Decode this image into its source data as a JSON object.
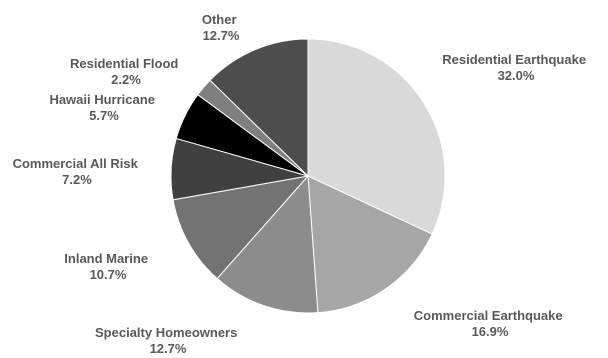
{
  "chart_data": {
    "type": "pie",
    "title": "",
    "start_angle_deg": 0,
    "direction": "clockwise",
    "slices": [
      {
        "label": "Residential Earthquake",
        "value": 32.0,
        "value_label": "32.0%",
        "color": "#d9d9d9"
      },
      {
        "label": "Commercial Earthquake",
        "value": 16.9,
        "value_label": "16.9%",
        "color": "#a6a6a6"
      },
      {
        "label": "Specialty Homeowners",
        "value": 12.7,
        "value_label": "12.7%",
        "color": "#8c8c8c"
      },
      {
        "label": "Inland Marine",
        "value": 10.7,
        "value_label": "10.7%",
        "color": "#737373"
      },
      {
        "label": "Commercial All Risk",
        "value": 7.2,
        "value_label": "7.2%",
        "color": "#404040"
      },
      {
        "label": "Hawaii Hurricane",
        "value": 5.7,
        "value_label": "5.7%",
        "color": "#000000"
      },
      {
        "label": "Residential Flood",
        "value": 2.2,
        "value_label": "2.2%",
        "color": "#7f7f7f"
      },
      {
        "label": "Other",
        "value": 12.7,
        "value_label": "12.7%",
        "color": "#4d4d4d"
      }
    ]
  }
}
